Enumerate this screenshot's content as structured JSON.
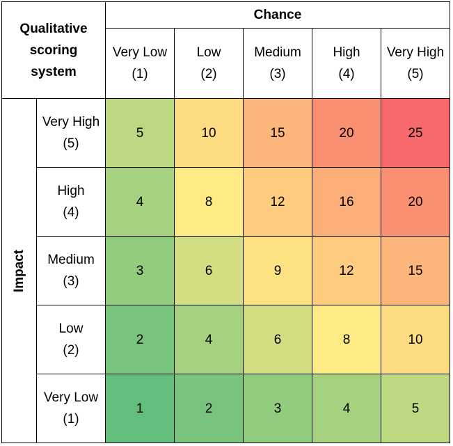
{
  "title": "Qualitative scoring system",
  "column_header": "Chance",
  "row_header": "Impact",
  "columns": [
    {
      "name": "Very Low",
      "score": "(1)"
    },
    {
      "name": "Low",
      "score": "(2)"
    },
    {
      "name": "Medium",
      "score": "(3)"
    },
    {
      "name": "High",
      "score": "(4)"
    },
    {
      "name": "Very High",
      "score": "(5)"
    }
  ],
  "rows": [
    {
      "name": "Very High",
      "score": "(5)"
    },
    {
      "name": "High",
      "score": "(4)"
    },
    {
      "name": "Medium",
      "score": "(3)"
    },
    {
      "name": "Low",
      "score": "(2)"
    },
    {
      "name": "Very Low",
      "score": "(1)"
    }
  ],
  "cells": [
    [
      5,
      10,
      15,
      20,
      25
    ],
    [
      4,
      8,
      12,
      16,
      20
    ],
    [
      3,
      6,
      9,
      12,
      15
    ],
    [
      2,
      4,
      6,
      8,
      10
    ],
    [
      1,
      2,
      3,
      4,
      5
    ]
  ]
}
